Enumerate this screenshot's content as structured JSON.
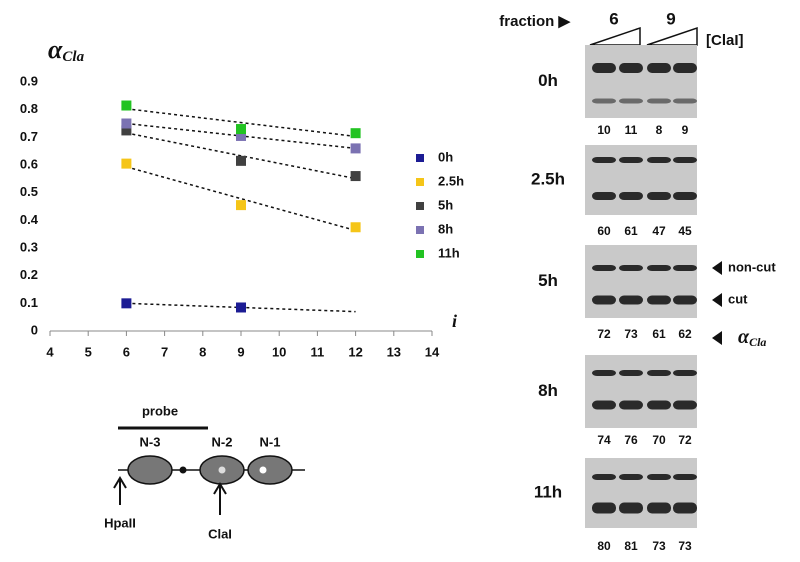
{
  "chart_data": {
    "type": "scatter",
    "y_label": "α",
    "y_label_sub": "Cla",
    "x_label": "i",
    "x": [
      6,
      9,
      12
    ],
    "series": [
      {
        "name": "0h",
        "color": "#1c1c94",
        "values": [
          0.1,
          0.085,
          null
        ]
      },
      {
        "name": "2.5h",
        "color": "#f5c518",
        "values": [
          0.605,
          0.455,
          0.375
        ]
      },
      {
        "name": "5h",
        "color": "#404040",
        "values": [
          0.725,
          0.615,
          0.56
        ]
      },
      {
        "name": "8h",
        "color": "#7b72b2",
        "values": [
          0.75,
          0.705,
          0.66
        ]
      },
      {
        "name": "11h",
        "color": "#22c322",
        "values": [
          0.815,
          0.73,
          0.715
        ]
      }
    ],
    "xlim": [
      4,
      14
    ],
    "xticks": [
      4,
      5,
      6,
      7,
      8,
      9,
      10,
      11,
      12,
      13,
      14
    ],
    "ylim": [
      0,
      0.9
    ],
    "yticks": [
      0,
      0.1,
      0.2,
      0.3,
      0.4,
      0.5,
      0.6,
      0.7,
      0.8,
      0.9
    ],
    "trend_lines": true
  },
  "gel": {
    "header": "fraction ▶",
    "fractions": [
      "6",
      "9"
    ],
    "enzyme": "[ClaI]",
    "rows": [
      {
        "label": "0h",
        "values": [
          "10",
          "11",
          "8",
          "9"
        ]
      },
      {
        "label": "2.5h",
        "values": [
          "60",
          "61",
          "47",
          "45"
        ]
      },
      {
        "label": "5h",
        "values": [
          "72",
          "73",
          "61",
          "62"
        ]
      },
      {
        "label": "8h",
        "values": [
          "74",
          "76",
          "70",
          "72"
        ]
      },
      {
        "label": "11h",
        "values": [
          "80",
          "81",
          "73",
          "73"
        ]
      }
    ],
    "annotations": [
      "non-cut",
      "cut"
    ],
    "alpha": "α",
    "alpha_sub": "Cla"
  },
  "diagram": {
    "probe": "probe",
    "nucleosomes": [
      "N-3",
      "N-2",
      "N-1"
    ],
    "sites": [
      "HpaII",
      "ClaI"
    ]
  }
}
